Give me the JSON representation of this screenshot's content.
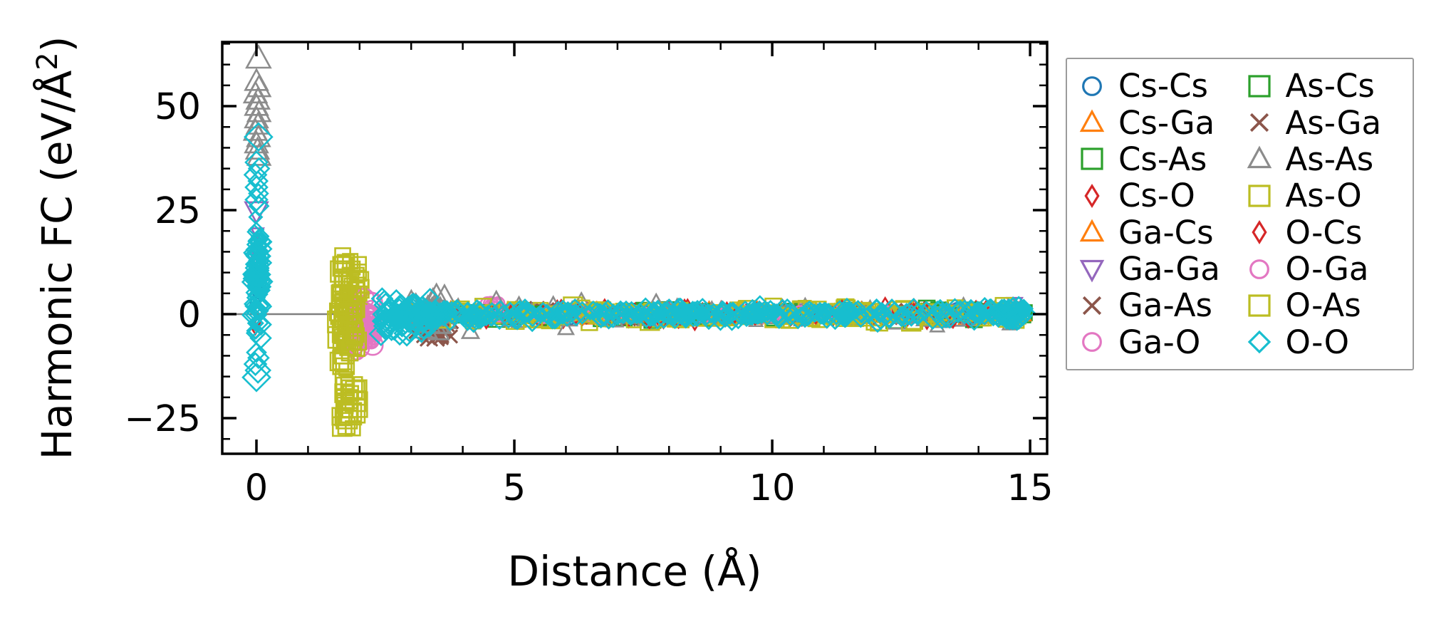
{
  "chart_data": {
    "type": "scatter",
    "title": "",
    "xlabel": "Distance (Å)",
    "ylabel": "Harmonic FC (eV/Å²)",
    "ylabel_parts": {
      "prefix": "Harmonic FC (eV/Å",
      "superscript": "2",
      "suffix": ")"
    },
    "xlim": [
      -0.663,
      15.33
    ],
    "ylim": [
      -33.56,
      65.42
    ],
    "x_major_ticks": [
      0,
      5,
      10,
      15
    ],
    "x_major_labels": [
      "0",
      "5",
      "10",
      "15"
    ],
    "x_minor_ticks": [
      1,
      2,
      3,
      4,
      6,
      7,
      8,
      9,
      11,
      12,
      13,
      14
    ],
    "y_major_ticks": [
      -25,
      0,
      25,
      50
    ],
    "y_major_labels": [
      "−25",
      "0",
      "25",
      "50"
    ],
    "y_minor_ticks": [
      -30,
      -20,
      -15,
      -10,
      -5,
      5,
      10,
      15,
      20,
      30,
      35,
      40,
      45,
      55,
      60,
      65
    ],
    "zero_line": {
      "y": 0,
      "color": "#808080"
    },
    "grid": false,
    "frame_color": "#000000",
    "series": [
      {
        "label": "Cs-Cs",
        "marker": "circle",
        "color": "#1f77b4",
        "points": [
          [
            0.02,
            7.5,
            18
          ],
          [
            0.04,
            5.0,
            16
          ],
          [
            -0.02,
            3.0,
            16
          ]
        ],
        "clusters": [
          {
            "x": [
              4.2,
              14.9
            ],
            "y": [
              -1.2,
              1.2
            ],
            "n": 45,
            "size": [
              14,
              24
            ]
          }
        ]
      },
      {
        "label": "Cs-Ga",
        "marker": "triangle-up",
        "color": "#ff7f0e",
        "points": [],
        "clusters": [
          {
            "x": [
              3.4,
              14.9
            ],
            "y": [
              -1.5,
              1.5
            ],
            "n": 55,
            "size": [
              14,
              24
            ]
          }
        ]
      },
      {
        "label": "Cs-As",
        "marker": "square",
        "color": "#2ca02c",
        "points": [],
        "clusters": [
          {
            "x": [
              3.5,
              14.9
            ],
            "y": [
              -1.6,
              1.6
            ],
            "n": 60,
            "size": [
              14,
              24
            ]
          }
        ]
      },
      {
        "label": "Cs-O",
        "marker": "thin-diamond",
        "color": "#d62728",
        "points": [
          [
            0.02,
            -2.0,
            12
          ],
          [
            -0.02,
            -3.8,
            12
          ],
          [
            10.2,
            2.1,
            15
          ],
          [
            12.75,
            2.2,
            15
          ],
          [
            14.15,
            1.9,
            15
          ],
          [
            13.0,
            -2.2,
            15
          ],
          [
            8.3,
            2.2,
            14
          ]
        ],
        "clusters": [
          {
            "x": [
              2.9,
              14.9
            ],
            "y": [
              -2.3,
              2.3
            ],
            "n": 70,
            "size": [
              14,
              24
            ]
          }
        ]
      },
      {
        "label": "Ga-Cs",
        "marker": "triangle-up",
        "color": "#ff7f0e",
        "points": [],
        "clusters": [
          {
            "x": [
              3.4,
              14.9
            ],
            "y": [
              -1.5,
              1.5
            ],
            "n": 55,
            "size": [
              14,
              24
            ]
          }
        ]
      },
      {
        "label": "Ga-Ga",
        "marker": "triangle-down",
        "color": "#9467bd",
        "points": [
          [
            0.0,
            24.8,
            30
          ],
          [
            0.02,
            19.5,
            16
          ],
          [
            -0.02,
            15.0,
            14
          ],
          [
            0.03,
            10.5,
            14
          ],
          [
            0.0,
            12.8,
            12
          ],
          [
            14.7,
            2.5,
            20
          ]
        ],
        "clusters": [
          {
            "x": [
              3.8,
              14.9
            ],
            "y": [
              -1.4,
              1.4
            ],
            "n": 45,
            "size": [
              14,
              24
            ]
          }
        ]
      },
      {
        "label": "Ga-As",
        "marker": "x",
        "color": "#8c564b",
        "points": [],
        "clusters": [
          {
            "x": [
              3.05,
              3.8
            ],
            "y": [
              -6.5,
              2.5
            ],
            "n": 28,
            "size": [
              18,
              30
            ]
          },
          {
            "x": [
              3.8,
              14.9
            ],
            "y": [
              -1.8,
              1.8
            ],
            "n": 50,
            "size": [
              14,
              24
            ]
          }
        ]
      },
      {
        "label": "Ga-O",
        "marker": "circle",
        "color": "#e377c2",
        "points": [],
        "clusters": [
          {
            "x": [
              1.9,
              2.28
            ],
            "y": [
              -9.5,
              5.0
            ],
            "n": 50,
            "size": [
              16,
              32
            ]
          },
          {
            "x": [
              4.35,
              4.75
            ],
            "y": [
              0.5,
              3.2
            ],
            "n": 6,
            "size": [
              16,
              24
            ]
          },
          {
            "x": [
              4.7,
              14.9
            ],
            "y": [
              -1.3,
              1.3
            ],
            "n": 35,
            "size": [
              14,
              22
            ]
          }
        ]
      },
      {
        "label": "As-Cs",
        "marker": "square",
        "color": "#2ca02c",
        "points": [],
        "clusters": [
          {
            "x": [
              3.5,
              14.9
            ],
            "y": [
              -1.6,
              1.6
            ],
            "n": 60,
            "size": [
              14,
              24
            ]
          }
        ]
      },
      {
        "label": "As-Ga",
        "marker": "x",
        "color": "#8c564b",
        "points": [],
        "clusters": [
          {
            "x": [
              3.05,
              3.8
            ],
            "y": [
              -6.5,
              2.5
            ],
            "n": 25,
            "size": [
              18,
              30
            ]
          },
          {
            "x": [
              3.8,
              14.9
            ],
            "y": [
              -1.8,
              1.8
            ],
            "n": 50,
            "size": [
              14,
              24
            ]
          }
        ]
      },
      {
        "label": "As-As",
        "marker": "triangle-up",
        "color": "#8c8c8c",
        "points": [
          [
            0.04,
            61.5,
            32
          ],
          [
            0.0,
            56.0,
            30
          ],
          [
            0.05,
            54.5,
            30
          ],
          [
            -0.02,
            53.0,
            30
          ],
          [
            0.03,
            51.5,
            30
          ],
          [
            0.0,
            50.0,
            30
          ],
          [
            0.05,
            48.5,
            30
          ],
          [
            0.0,
            47.0,
            30
          ],
          [
            0.03,
            45.5,
            30
          ],
          [
            -0.02,
            44.0,
            30
          ],
          [
            0.04,
            42.5,
            30
          ],
          [
            0.0,
            41.0,
            30
          ],
          [
            0.02,
            39.5,
            30
          ],
          [
            0.05,
            38.0,
            30
          ],
          [
            4.65,
            3.4,
            22
          ],
          [
            6.3,
            3.2,
            20
          ],
          [
            7.75,
            2.9,
            20
          ],
          [
            6.0,
            -3.4,
            20
          ],
          [
            4.15,
            -4.2,
            22
          ],
          [
            13.2,
            -2.9,
            18
          ],
          [
            14.6,
            -2.4,
            18
          ]
        ],
        "clusters": [
          {
            "x": [
              3.0,
              3.65
            ],
            "y": [
              -5.8,
              6.8
            ],
            "n": 32,
            "size": [
              20,
              34
            ]
          },
          {
            "x": [
              3.6,
              14.9
            ],
            "y": [
              -2.4,
              2.4
            ],
            "n": 110,
            "size": [
              14,
              26
            ]
          }
        ]
      },
      {
        "label": "As-O",
        "marker": "square",
        "color": "#bcbd22",
        "points": [],
        "clusters": [
          {
            "x": [
              1.58,
              2.02
            ],
            "y": [
              -15.0,
              14.5
            ],
            "n": 55,
            "size": [
              16,
              30
            ]
          },
          {
            "x": [
              1.62,
              1.95
            ],
            "y": [
              -30.5,
              -15.0
            ],
            "n": 13,
            "size": [
              20,
              36
            ]
          },
          {
            "x": [
              2.9,
              14.9
            ],
            "y": [
              -2.3,
              2.3
            ],
            "n": 85,
            "size": [
              14,
              26
            ]
          }
        ]
      },
      {
        "label": "O-Cs",
        "marker": "thin-diamond",
        "color": "#d62728",
        "points": [],
        "clusters": [
          {
            "x": [
              3.0,
              14.9
            ],
            "y": [
              -2.3,
              2.3
            ],
            "n": 60,
            "size": [
              14,
              24
            ]
          }
        ]
      },
      {
        "label": "O-Ga",
        "marker": "circle",
        "color": "#e377c2",
        "points": [],
        "clusters": [
          {
            "x": [
              1.92,
              2.3
            ],
            "y": [
              -9.0,
              4.5
            ],
            "n": 40,
            "size": [
              16,
              32
            ]
          },
          {
            "x": [
              4.7,
              14.9
            ],
            "y": [
              -1.3,
              1.3
            ],
            "n": 30,
            "size": [
              14,
              22
            ]
          }
        ]
      },
      {
        "label": "O-As",
        "marker": "square",
        "color": "#bcbd22",
        "points": [],
        "clusters": [
          {
            "x": [
              1.6,
              2.0
            ],
            "y": [
              -14.0,
              14.0
            ],
            "n": 45,
            "size": [
              16,
              30
            ]
          },
          {
            "x": [
              1.65,
              1.95
            ],
            "y": [
              -29.5,
              -16.0
            ],
            "n": 9,
            "size": [
              20,
              36
            ]
          },
          {
            "x": [
              2.9,
              14.9
            ],
            "y": [
              -2.3,
              2.3
            ],
            "n": 80,
            "size": [
              14,
              26
            ]
          }
        ]
      },
      {
        "label": "O-O",
        "marker": "diamond",
        "color": "#17becf",
        "points": [
          [
            0.04,
            42.6,
            38
          ],
          [
            0.0,
            36.5,
            30
          ],
          [
            0.05,
            35.0,
            28
          ],
          [
            -0.02,
            33.5,
            30
          ],
          [
            0.03,
            32.0,
            26
          ],
          [
            0.0,
            30.5,
            30
          ],
          [
            0.04,
            29.0,
            26
          ],
          [
            0.0,
            27.5,
            30
          ],
          [
            0.05,
            26.0,
            26
          ],
          [
            0.0,
            -9.2,
            26
          ],
          [
            0.04,
            -10.5,
            28
          ],
          [
            -0.02,
            -12.0,
            30
          ],
          [
            0.03,
            -13.5,
            34
          ],
          [
            0.0,
            -15.2,
            38
          ],
          [
            14.78,
            0.3,
            44
          ],
          [
            14.6,
            -0.5,
            36
          ]
        ],
        "clusters": [
          {
            "x": [
              -0.07,
              0.1
            ],
            "y": [
              -8.5,
              24.0
            ],
            "n": 95,
            "size": [
              16,
              32
            ]
          },
          {
            "x": [
              2.4,
              3.4
            ],
            "y": [
              -6.0,
              5.0
            ],
            "n": 70,
            "size": [
              18,
              34
            ]
          },
          {
            "x": [
              2.6,
              14.9
            ],
            "y": [
              -2.0,
              2.0
            ],
            "n": 380,
            "size": [
              16,
              30
            ]
          },
          {
            "x": [
              14.45,
              14.92
            ],
            "y": [
              -1.6,
              1.6
            ],
            "n": 18,
            "size": [
              22,
              40
            ]
          }
        ]
      }
    ]
  },
  "legend": {
    "columns": 2,
    "location": "outside upper right"
  }
}
